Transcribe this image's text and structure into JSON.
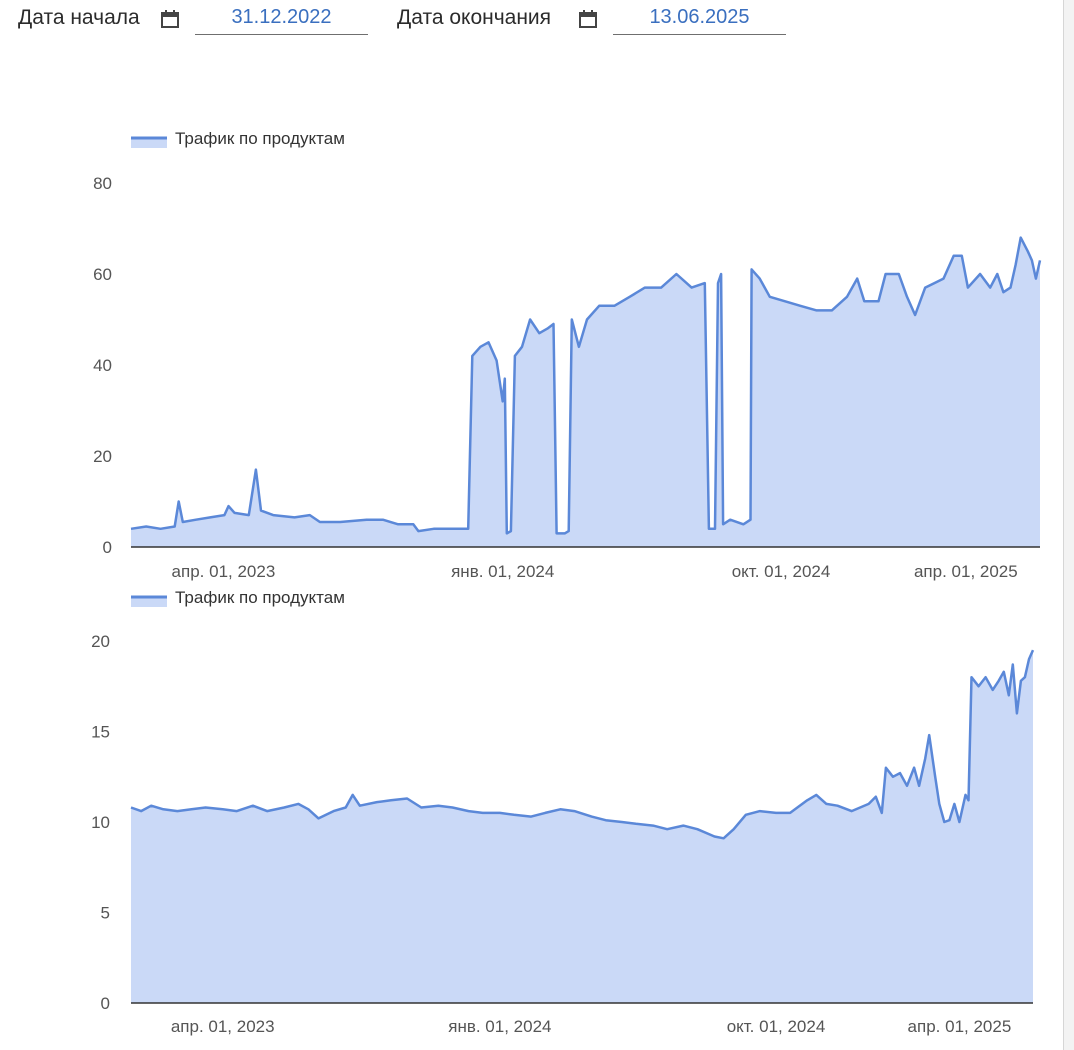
{
  "filters": {
    "start_label": "Дата начала",
    "start_value": "31.12.2022",
    "end_label": "Дата окончания",
    "end_value": "13.06.2025"
  },
  "colors": {
    "line": "#5b88d8",
    "fill": "#cad9f7",
    "axis": "#333333"
  },
  "chart_data": [
    {
      "type": "area",
      "legend": "Трафик по продуктам",
      "legend_position": "top-left",
      "grid": false,
      "xlim": [
        "2022-12-31",
        "2025-06-13"
      ],
      "ylim": [
        0,
        80
      ],
      "yticks": [
        0,
        20,
        40,
        60,
        80
      ],
      "xticks": [
        {
          "date": "2023-04-01",
          "label": "апр. 01, 2023"
        },
        {
          "date": "2024-01-01",
          "label": "янв. 01, 2024"
        },
        {
          "date": "2024-10-01",
          "label": "окт. 01, 2024"
        },
        {
          "date": "2025-04-01",
          "label": "апр. 01, 2025"
        }
      ],
      "points": [
        [
          "2022-12-31",
          4
        ],
        [
          "2023-01-15",
          4.5
        ],
        [
          "2023-01-29",
          4
        ],
        [
          "2023-02-12",
          4.5
        ],
        [
          "2023-02-16",
          10
        ],
        [
          "2023-02-20",
          5.5
        ],
        [
          "2023-03-05",
          6
        ],
        [
          "2023-03-19",
          6.5
        ],
        [
          "2023-04-02",
          7
        ],
        [
          "2023-04-06",
          9
        ],
        [
          "2023-04-12",
          7.5
        ],
        [
          "2023-04-26",
          7
        ],
        [
          "2023-05-03",
          17
        ],
        [
          "2023-05-08",
          8
        ],
        [
          "2023-05-20",
          7
        ],
        [
          "2023-06-10",
          6.5
        ],
        [
          "2023-06-25",
          7
        ],
        [
          "2023-07-05",
          5.5
        ],
        [
          "2023-07-25",
          5.5
        ],
        [
          "2023-08-20",
          6
        ],
        [
          "2023-09-05",
          6
        ],
        [
          "2023-09-20",
          5
        ],
        [
          "2023-10-05",
          5
        ],
        [
          "2023-10-10",
          3.5
        ],
        [
          "2023-10-25",
          4
        ],
        [
          "2023-11-10",
          4
        ],
        [
          "2023-11-25",
          4
        ],
        [
          "2023-11-28",
          4
        ],
        [
          "2023-12-02",
          42
        ],
        [
          "2023-12-10",
          44
        ],
        [
          "2023-12-18",
          45
        ],
        [
          "2023-12-26",
          41
        ],
        [
          "2024-01-01",
          32
        ],
        [
          "2024-01-03",
          37
        ],
        [
          "2024-01-05",
          3
        ],
        [
          "2024-01-09",
          3.5
        ],
        [
          "2024-01-13",
          42
        ],
        [
          "2024-01-20",
          44
        ],
        [
          "2024-01-28",
          50
        ],
        [
          "2024-02-06",
          47
        ],
        [
          "2024-02-14",
          48
        ],
        [
          "2024-02-20",
          49
        ],
        [
          "2024-02-23",
          3
        ],
        [
          "2024-03-02",
          3
        ],
        [
          "2024-03-06",
          3.5
        ],
        [
          "2024-03-09",
          50
        ],
        [
          "2024-03-16",
          44
        ],
        [
          "2024-03-24",
          50
        ],
        [
          "2024-04-05",
          53
        ],
        [
          "2024-04-20",
          53
        ],
        [
          "2024-05-05",
          55
        ],
        [
          "2024-05-20",
          57
        ],
        [
          "2024-06-05",
          57
        ],
        [
          "2024-06-20",
          60
        ],
        [
          "2024-07-05",
          57
        ],
        [
          "2024-07-18",
          58
        ],
        [
          "2024-07-22",
          4
        ],
        [
          "2024-07-28",
          4
        ],
        [
          "2024-07-31",
          58
        ],
        [
          "2024-08-03",
          60
        ],
        [
          "2024-08-05",
          5
        ],
        [
          "2024-08-12",
          6
        ],
        [
          "2024-08-25",
          5
        ],
        [
          "2024-09-01",
          6
        ],
        [
          "2024-09-02",
          61
        ],
        [
          "2024-09-10",
          59
        ],
        [
          "2024-09-20",
          55
        ],
        [
          "2024-10-05",
          54
        ],
        [
          "2024-10-20",
          53
        ],
        [
          "2024-11-05",
          52
        ],
        [
          "2024-11-20",
          52
        ],
        [
          "2024-12-05",
          55
        ],
        [
          "2024-12-15",
          59
        ],
        [
          "2024-12-22",
          54
        ],
        [
          "2025-01-05",
          54
        ],
        [
          "2025-01-12",
          60
        ],
        [
          "2025-01-25",
          60
        ],
        [
          "2025-02-02",
          55
        ],
        [
          "2025-02-10",
          51
        ],
        [
          "2025-02-20",
          57
        ],
        [
          "2025-03-01",
          58
        ],
        [
          "2025-03-10",
          59
        ],
        [
          "2025-03-20",
          64
        ],
        [
          "2025-03-28",
          64
        ],
        [
          "2025-04-03",
          57
        ],
        [
          "2025-04-15",
          60
        ],
        [
          "2025-04-25",
          57
        ],
        [
          "2025-05-02",
          60
        ],
        [
          "2025-05-08",
          56
        ],
        [
          "2025-05-15",
          57
        ],
        [
          "2025-05-20",
          62
        ],
        [
          "2025-05-25",
          68
        ],
        [
          "2025-06-01",
          65
        ],
        [
          "2025-06-05",
          63
        ],
        [
          "2025-06-09",
          59
        ],
        [
          "2025-06-13",
          63
        ]
      ]
    },
    {
      "type": "area",
      "legend": "Трафик по продуктам",
      "legend_position": "top-left",
      "grid": false,
      "xlim": [
        "2022-12-31",
        "2025-06-13"
      ],
      "ylim": [
        0,
        20
      ],
      "yticks": [
        0,
        5,
        10,
        15,
        20
      ],
      "xticks": [
        {
          "date": "2023-04-01",
          "label": "апр. 01, 2023"
        },
        {
          "date": "2024-01-01",
          "label": "янв. 01, 2024"
        },
        {
          "date": "2024-10-01",
          "label": "окт. 01, 2024"
        },
        {
          "date": "2025-04-01",
          "label": "апр. 01, 2025"
        }
      ],
      "points": [
        [
          "2022-12-31",
          10.8
        ],
        [
          "2023-01-10",
          10.6
        ],
        [
          "2023-01-20",
          10.9
        ],
        [
          "2023-02-01",
          10.7
        ],
        [
          "2023-02-15",
          10.6
        ],
        [
          "2023-03-01",
          10.7
        ],
        [
          "2023-03-15",
          10.8
        ],
        [
          "2023-04-01",
          10.7
        ],
        [
          "2023-04-15",
          10.6
        ],
        [
          "2023-05-01",
          10.9
        ],
        [
          "2023-05-15",
          10.6
        ],
        [
          "2023-06-01",
          10.8
        ],
        [
          "2023-06-15",
          11.0
        ],
        [
          "2023-06-25",
          10.7
        ],
        [
          "2023-07-05",
          10.2
        ],
        [
          "2023-07-20",
          10.6
        ],
        [
          "2023-08-01",
          10.8
        ],
        [
          "2023-08-08",
          11.5
        ],
        [
          "2023-08-15",
          10.9
        ],
        [
          "2023-09-01",
          11.1
        ],
        [
          "2023-09-15",
          11.2
        ],
        [
          "2023-10-01",
          11.3
        ],
        [
          "2023-10-15",
          10.8
        ],
        [
          "2023-11-01",
          10.9
        ],
        [
          "2023-11-15",
          10.8
        ],
        [
          "2023-12-01",
          10.6
        ],
        [
          "2023-12-15",
          10.5
        ],
        [
          "2024-01-01",
          10.5
        ],
        [
          "2024-01-15",
          10.4
        ],
        [
          "2024-02-01",
          10.3
        ],
        [
          "2024-02-15",
          10.5
        ],
        [
          "2024-03-01",
          10.7
        ],
        [
          "2024-03-15",
          10.6
        ],
        [
          "2024-04-01",
          10.3
        ],
        [
          "2024-04-15",
          10.1
        ],
        [
          "2024-05-01",
          10.0
        ],
        [
          "2024-05-15",
          9.9
        ],
        [
          "2024-06-01",
          9.8
        ],
        [
          "2024-06-15",
          9.6
        ],
        [
          "2024-07-01",
          9.8
        ],
        [
          "2024-07-15",
          9.6
        ],
        [
          "2024-08-01",
          9.2
        ],
        [
          "2024-08-10",
          9.1
        ],
        [
          "2024-08-20",
          9.6
        ],
        [
          "2024-09-01",
          10.4
        ],
        [
          "2024-09-15",
          10.6
        ],
        [
          "2024-10-01",
          10.5
        ],
        [
          "2024-10-15",
          10.5
        ],
        [
          "2024-11-01",
          11.2
        ],
        [
          "2024-11-10",
          11.5
        ],
        [
          "2024-11-20",
          11.0
        ],
        [
          "2024-12-01",
          10.9
        ],
        [
          "2024-12-15",
          10.6
        ],
        [
          "2025-01-01",
          11.0
        ],
        [
          "2025-01-08",
          11.4
        ],
        [
          "2025-01-14",
          10.5
        ],
        [
          "2025-01-18",
          13.0
        ],
        [
          "2025-01-25",
          12.5
        ],
        [
          "2025-02-01",
          12.7
        ],
        [
          "2025-02-08",
          12.0
        ],
        [
          "2025-02-15",
          13.0
        ],
        [
          "2025-02-20",
          12.0
        ],
        [
          "2025-02-26",
          13.5
        ],
        [
          "2025-03-02",
          14.8
        ],
        [
          "2025-03-08",
          12.5
        ],
        [
          "2025-03-12",
          11.0
        ],
        [
          "2025-03-17",
          10.0
        ],
        [
          "2025-03-22",
          10.1
        ],
        [
          "2025-03-27",
          11.0
        ],
        [
          "2025-04-01",
          10.0
        ],
        [
          "2025-04-07",
          11.5
        ],
        [
          "2025-04-10",
          11.2
        ],
        [
          "2025-04-13",
          18.0
        ],
        [
          "2025-04-20",
          17.5
        ],
        [
          "2025-04-27",
          18.0
        ],
        [
          "2025-05-04",
          17.3
        ],
        [
          "2025-05-10",
          17.8
        ],
        [
          "2025-05-15",
          18.3
        ],
        [
          "2025-05-20",
          17.0
        ],
        [
          "2025-05-24",
          18.7
        ],
        [
          "2025-05-28",
          16.0
        ],
        [
          "2025-06-01",
          17.8
        ],
        [
          "2025-06-05",
          18.0
        ],
        [
          "2025-06-09",
          19.0
        ],
        [
          "2025-06-13",
          19.5
        ]
      ]
    }
  ]
}
